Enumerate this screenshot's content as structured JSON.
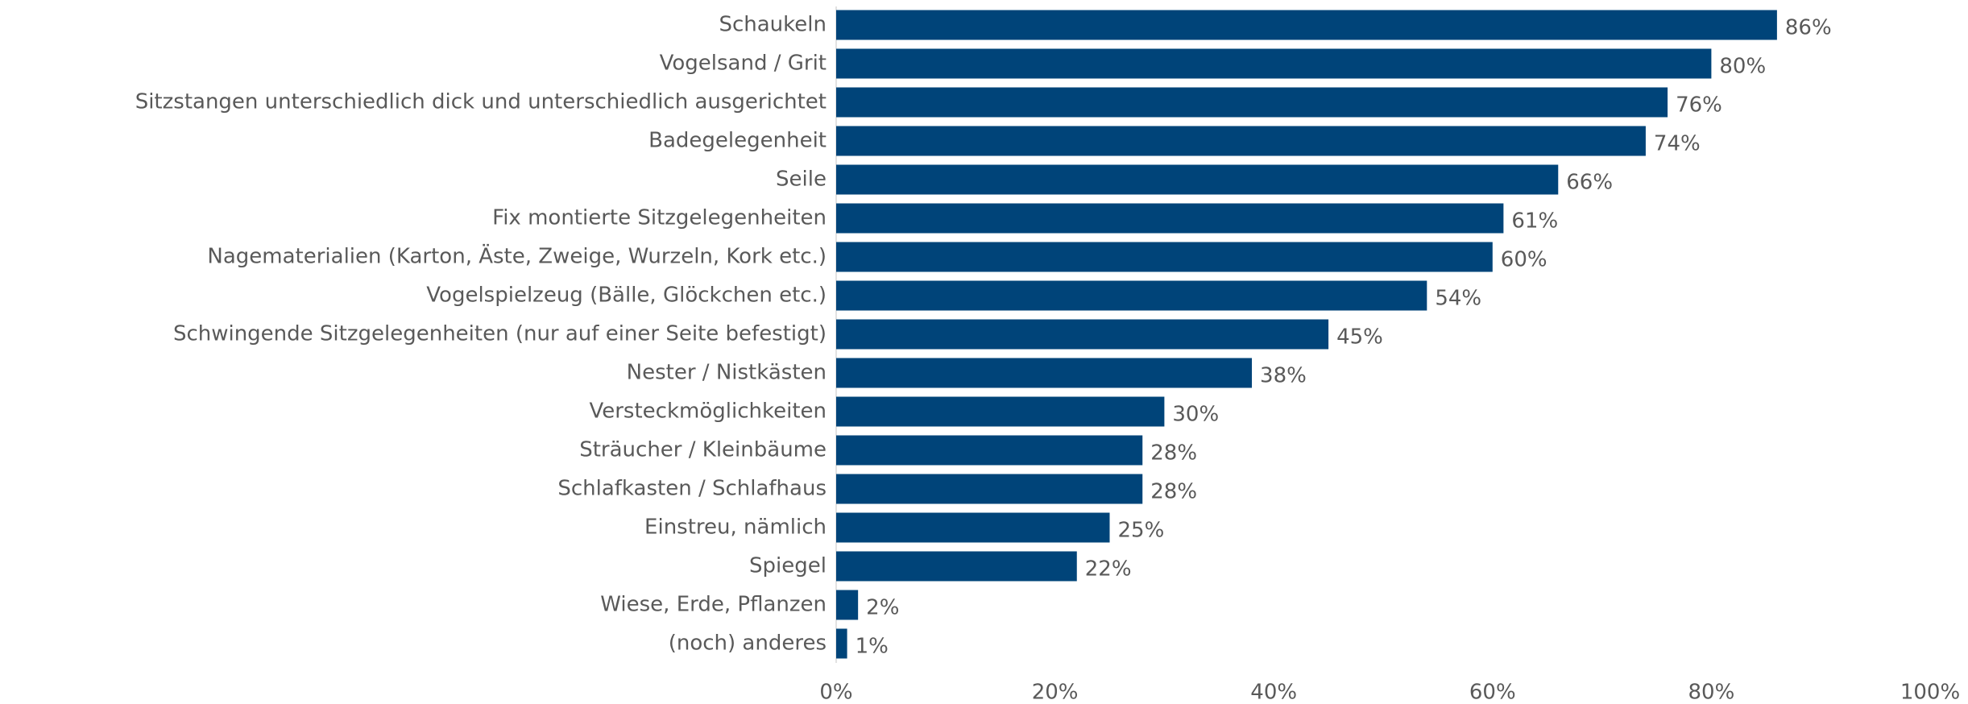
{
  "chart_data": {
    "type": "hbar",
    "categories": [
      "Schaukeln",
      "Vogelsand / Grit",
      "Sitzstangen unterschiedlich dick und unterschiedlich ausgerichtet",
      "Badegelegenheit",
      "Seile",
      "Fix montierte Sitzgelegenheiten",
      "Nagematerialien (Karton, Äste, Zweige, Wurzeln, Kork etc.)",
      "Vogelspielzeug (Bälle, Glöckchen etc.)",
      "Schwingende Sitzgelegenheiten (nur auf einer Seite befestigt)",
      "Nester / Nistkästen",
      "Versteckmöglichkeiten",
      "Sträucher / Kleinbäume",
      "Schlafkasten / Schlafhaus",
      "Einstreu, nämlich",
      "Spiegel",
      "Wiese, Erde, Pflanzen",
      "(noch) anderes"
    ],
    "values": [
      86,
      80,
      76,
      74,
      66,
      61,
      60,
      54,
      45,
      38,
      30,
      28,
      28,
      25,
      22,
      2,
      1
    ],
    "value_labels": [
      "86%",
      "80%",
      "76%",
      "74%",
      "66%",
      "61%",
      "60%",
      "54%",
      "45%",
      "38%",
      "30%",
      "28%",
      "28%",
      "25%",
      "22%",
      "2%",
      "1%"
    ],
    "color": "#004479",
    "xlim": [
      0,
      100
    ],
    "xticks": [
      {
        "value": 0,
        "label": "0%"
      },
      {
        "value": 20,
        "label": "20%"
      },
      {
        "value": 40,
        "label": "40%"
      },
      {
        "value": 60,
        "label": "60%"
      },
      {
        "value": 80,
        "label": "80%"
      },
      {
        "value": 100,
        "label": "100%"
      }
    ],
    "grid": false
  }
}
